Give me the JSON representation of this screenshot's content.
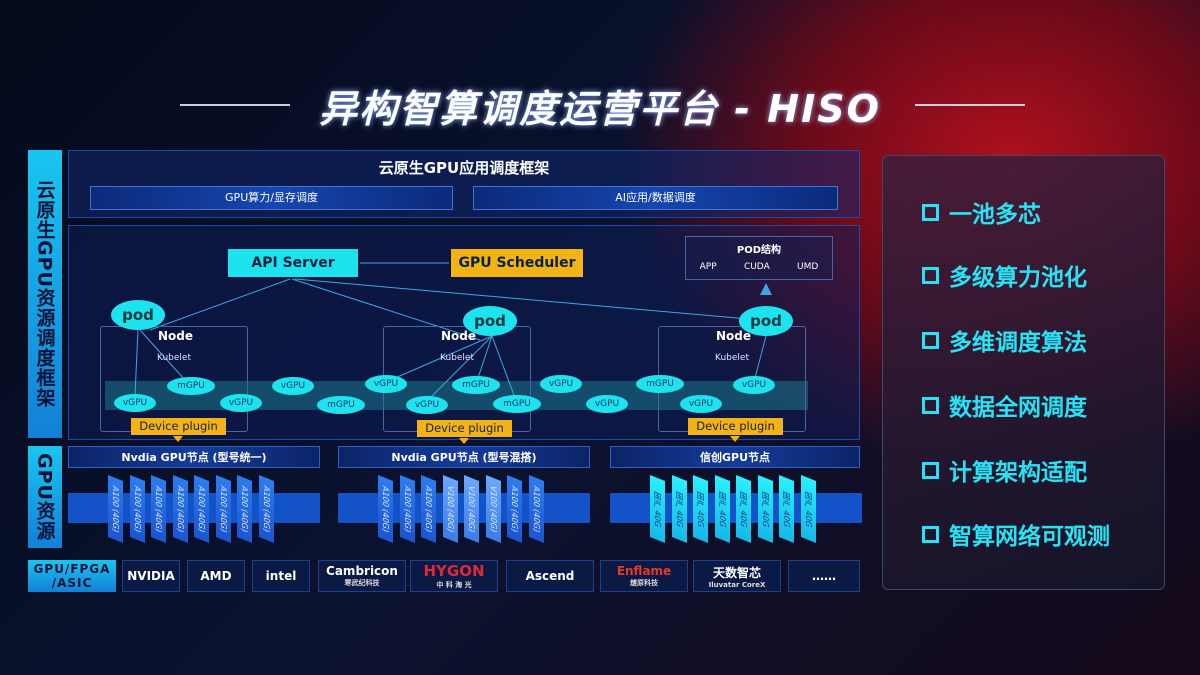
{
  "title": "异构智算调度运营平台 - HISO",
  "side_labels": {
    "framework": "云原生GPU资源调度框架",
    "resources": "GPU资源",
    "chip_types": "GPU/FPGA /ASIC"
  },
  "top": {
    "title": "云原生GPU应用调度框架",
    "bar_left": "GPU算力/显存调度",
    "bar_right": "AI应用/数据调度"
  },
  "diagram": {
    "api_server": "API Server",
    "gpu_scheduler": "GPU Scheduler",
    "pod_structure": {
      "title": "POD结构",
      "items": [
        "APP",
        "CUDA",
        "UMD"
      ]
    },
    "pod_label": "pod",
    "node_label": "Node",
    "kubelet_label": "Kubelet",
    "device_plugin": "Device plugin",
    "units": [
      "vGPU",
      "mGPU",
      "vGPU",
      "vGPU",
      "mGPU",
      "vGPU",
      "vGPU",
      "mGPU",
      "mGPU",
      "vGPU",
      "vGPU",
      "mGPU",
      "vGPU",
      "vGPU"
    ]
  },
  "gpu_nodes": [
    {
      "title": "Nvdia GPU节点 (型号统一)",
      "chips": [
        "A100 (40G)",
        "A100 (40G)",
        "A100 (40G)",
        "A100 (40G)",
        "A100 (40G)",
        "A100 (40G)",
        "A100 (40G)",
        "A100 (40G)"
      ]
    },
    {
      "title": "Nvdia GPU节点 (型号混搭)",
      "chips": [
        "A100 (40G)",
        "A100 (40G)",
        "A100 (40G)",
        "V100 (40G)",
        "V100 (40G)",
        "V100 (40G)",
        "A100 (40G)",
        "A100 (40G)"
      ]
    },
    {
      "title": "信创GPU节点",
      "chips": [
        "国产 40G",
        "国产 40G",
        "国产 40G",
        "国产 40G",
        "国产 40G",
        "国产 40G",
        "国产 40G",
        "国产 40G"
      ]
    }
  ],
  "vendors": [
    {
      "name": "NVIDIA",
      "sub": ""
    },
    {
      "name": "AMD",
      "sub": ""
    },
    {
      "name": "intel",
      "sub": ""
    },
    {
      "name": "Cambricon",
      "sub": "寒武纪科技"
    },
    {
      "name": "HYGON",
      "sub": "中 科 海 光"
    },
    {
      "name": "Ascend",
      "sub": ""
    },
    {
      "name": "Enflame",
      "sub": "燧原科技"
    },
    {
      "name": "天数智芯",
      "sub": "Iluvatar CoreX"
    },
    {
      "name": "……",
      "sub": ""
    }
  ],
  "features": [
    "一池多芯",
    "多级算力池化",
    "多维调度算法",
    "数据全网调度",
    "计算架构适配",
    "智算网络可观测"
  ],
  "colors": {
    "cyan": "#1de3ef",
    "orange": "#f3b314",
    "blue": "#1452c8",
    "red": "#b0101e"
  }
}
